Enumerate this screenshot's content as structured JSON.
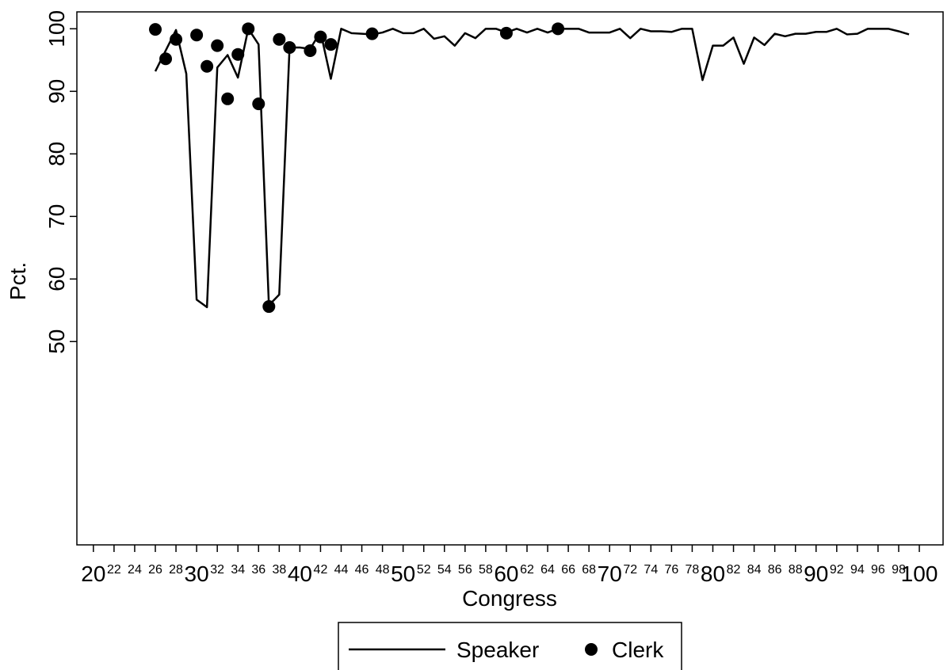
{
  "chart_data": {
    "type": "line",
    "xlabel": "Congress",
    "ylabel": "Pct.",
    "xlim": [
      18.4,
      102.3
    ],
    "ylim": [
      17.5,
      102.7
    ],
    "xticks": [
      20,
      22,
      24,
      26,
      28,
      30,
      32,
      34,
      36,
      38,
      40,
      42,
      44,
      46,
      48,
      50,
      52,
      54,
      56,
      58,
      60,
      62,
      64,
      66,
      68,
      70,
      72,
      74,
      76,
      78,
      80,
      82,
      84,
      86,
      88,
      90,
      92,
      94,
      96,
      98,
      100
    ],
    "yticks": [
      50,
      60,
      70,
      80,
      90,
      100
    ],
    "series": [
      {
        "name": "Speaker",
        "mark": "line",
        "color": "#000000",
        "x": [
          26,
          27,
          28,
          29,
          30,
          31,
          32,
          33,
          34,
          35,
          36,
          37,
          38,
          39,
          40,
          41,
          42,
          43,
          44,
          45,
          46,
          47,
          48,
          49,
          50,
          51,
          52,
          53,
          54,
          55,
          56,
          57,
          58,
          59,
          60,
          61,
          62,
          63,
          64,
          65,
          66,
          67,
          68,
          69,
          70,
          71,
          72,
          73,
          74,
          75,
          76,
          77,
          78,
          79,
          80,
          81,
          82,
          83,
          84,
          85,
          86,
          87,
          88,
          89,
          90,
          91,
          92,
          93,
          94,
          95,
          96,
          97,
          98,
          99
        ],
        "values": [
          93.2,
          96.5,
          99.8,
          92.8,
          56.7,
          55.5,
          93.8,
          95.8,
          92.2,
          100,
          97.5,
          55.8,
          57.5,
          97,
          97,
          96.8,
          99.5,
          92,
          100,
          99.3,
          99.2,
          99.1,
          99.4,
          100,
          99.3,
          99.3,
          100,
          98.4,
          98.8,
          97.3,
          99.3,
          98.5,
          100,
          100,
          99.4,
          100,
          99.4,
          100,
          99.4,
          100,
          100,
          100,
          99.4,
          99.4,
          99.4,
          100,
          98.5,
          100,
          99.6,
          99.6,
          99.5,
          100,
          100,
          91.8,
          97.3,
          97.3,
          98.6,
          94.4,
          98.6,
          97.4,
          99.2,
          98.8,
          99.2,
          99.2,
          99.5,
          99.5,
          100,
          99.1,
          99.2,
          100,
          100,
          100,
          99.6,
          99.1
        ]
      },
      {
        "name": "Clerk",
        "mark": "circle",
        "color": "#000000",
        "x": [
          26,
          27,
          28,
          30,
          31,
          32,
          33,
          34,
          35,
          36,
          37,
          38,
          39,
          41,
          42,
          43,
          47,
          60,
          65
        ],
        "values": [
          99.9,
          95.2,
          98.3,
          99,
          94,
          97.3,
          88.8,
          95.9,
          100,
          88,
          55.6,
          98.3,
          97,
          96.5,
          98.7,
          97.5,
          99.2,
          99.3,
          100
        ]
      }
    ]
  }
}
